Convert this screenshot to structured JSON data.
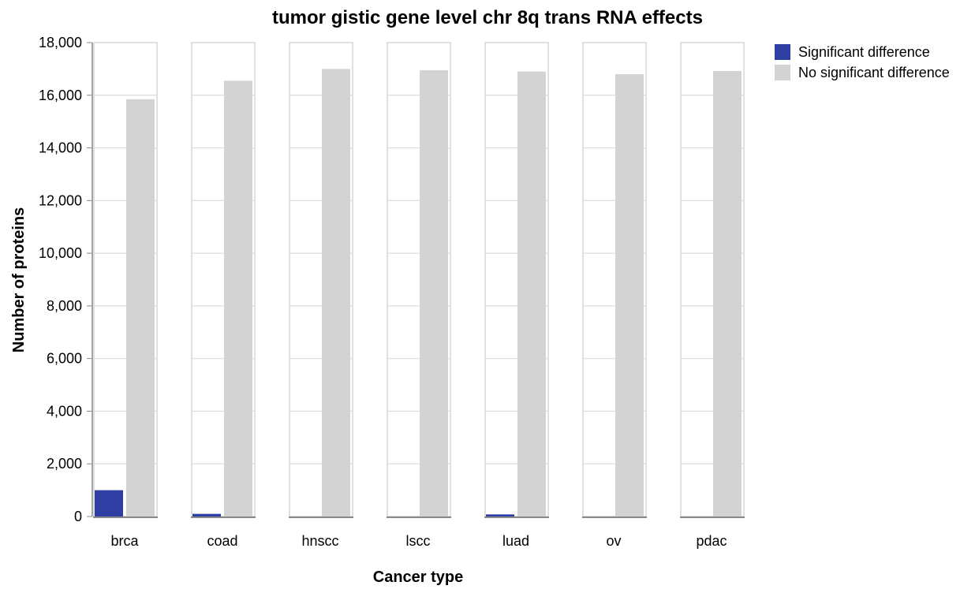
{
  "chart_data": {
    "type": "bar",
    "title": "tumor gistic gene level chr 8q trans RNA effects",
    "xlabel": "Cancer type",
    "ylabel": "Number of proteins",
    "categories": [
      "brca",
      "coad",
      "hnscc",
      "lscc",
      "luad",
      "ov",
      "pdac"
    ],
    "series": [
      {
        "name": "Significant difference",
        "color": "#2f3ea3",
        "values": [
          1000,
          100,
          0,
          0,
          80,
          0,
          0
        ]
      },
      {
        "name": "No significant difference",
        "color": "#d3d3d3",
        "values": [
          15850,
          16550,
          17000,
          16950,
          16900,
          16800,
          16920
        ]
      }
    ],
    "ylim": [
      0,
      18000
    ],
    "yticks": [
      "0",
      "2,000",
      "4,000",
      "6,000",
      "8,000",
      "10,000",
      "12,000",
      "14,000",
      "16,000",
      "18,000"
    ],
    "grid": true,
    "legend_position": "top-right"
  }
}
